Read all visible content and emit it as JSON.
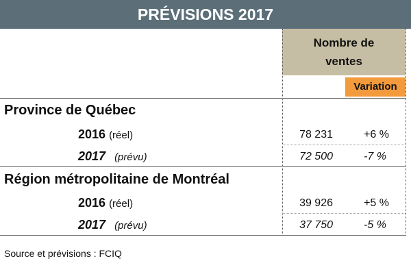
{
  "title": "PRÉVISIONS 2017",
  "headers": {
    "sales_line1": "Nombre de",
    "sales_line2": "ventes",
    "variation": "Variation"
  },
  "sections": [
    {
      "name": "Province de Québec",
      "rows": [
        {
          "year": "2016",
          "note": "(réel)",
          "sales": "78 231",
          "variation": "+6 %"
        },
        {
          "year": "2017",
          "note": "(prévu)",
          "sales": "72 500",
          "variation": "-7 %"
        }
      ]
    },
    {
      "name": "Région métropolitaine de Montréal",
      "rows": [
        {
          "year": "2016",
          "note": "(réel)",
          "sales": "39 926",
          "variation": "+5 %"
        },
        {
          "year": "2017",
          "note": "(prévu)",
          "sales": "37 750",
          "variation": "-5 %"
        }
      ]
    }
  ],
  "source": "Source et prévisions : FCIQ",
  "colors": {
    "title_bar": "#5c6f79",
    "sales_header": "#c6bea4",
    "variation_header": "#f39a3d"
  }
}
